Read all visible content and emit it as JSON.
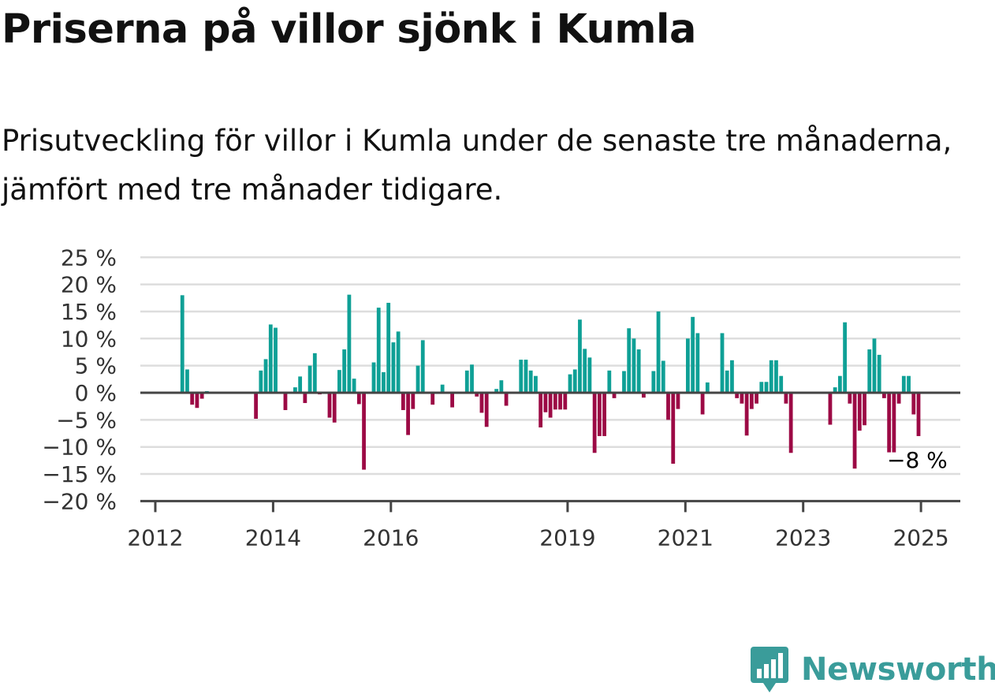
{
  "title": "Priserna på villor sjönk i Kumla",
  "subtitle": "Prisutveckling för villor i Kumla under de senaste tre månaderna, jämfört med tre månader tidigare.",
  "brand": {
    "name": "Newsworthy",
    "icon": "newsworthy-logo-icon"
  },
  "colors": {
    "positive": "#0fa096",
    "negative": "#9c0a45",
    "grid": "#dddddd",
    "axis": "#444444"
  },
  "chart_data": {
    "type": "bar",
    "title": "",
    "xlabel": "",
    "ylabel": "",
    "ylim": [
      -20,
      25
    ],
    "y_ticks": [
      -20,
      -15,
      -10,
      -5,
      0,
      5,
      10,
      15,
      20,
      25
    ],
    "y_tick_labels": [
      "−20 %",
      "−15 %",
      "−10 %",
      "−5 %",
      "0 %",
      "5 %",
      "10 %",
      "15 %",
      "20 %",
      "25 %"
    ],
    "x_ticks": [
      2012,
      2014,
      2016,
      2019,
      2021,
      2023,
      2025
    ],
    "x_tick_labels": [
      "2012",
      "2014",
      "2016",
      "2019",
      "2021",
      "2023",
      "2025"
    ],
    "grid": true,
    "end_label": "−8 %",
    "x": [
      "2012-06",
      "2012-07",
      "2012-08",
      "2012-09",
      "2012-10",
      "2012-11",
      "2013-09",
      "2013-10",
      "2013-11",
      "2013-12",
      "2014-01",
      "2014-03",
      "2014-05",
      "2014-06",
      "2014-07",
      "2014-08",
      "2014-09",
      "2014-10",
      "2014-12",
      "2015-01",
      "2015-02",
      "2015-03",
      "2015-04",
      "2015-05",
      "2015-06",
      "2015-07",
      "2015-09",
      "2015-10",
      "2015-11",
      "2015-12",
      "2016-01",
      "2016-02",
      "2016-03",
      "2016-04",
      "2016-05",
      "2016-06",
      "2016-07",
      "2016-09",
      "2016-11",
      "2017-01",
      "2017-04",
      "2017-05",
      "2017-06",
      "2017-07",
      "2017-08",
      "2017-10",
      "2017-11",
      "2017-12",
      "2018-03",
      "2018-04",
      "2018-05",
      "2018-06",
      "2018-07",
      "2018-08",
      "2018-09",
      "2018-10",
      "2018-11",
      "2018-12",
      "2019-01",
      "2019-02",
      "2019-03",
      "2019-04",
      "2019-05",
      "2019-06",
      "2019-07",
      "2019-08",
      "2019-09",
      "2019-10",
      "2019-12",
      "2020-01",
      "2020-02",
      "2020-03",
      "2020-04",
      "2020-06",
      "2020-07",
      "2020-08",
      "2020-09",
      "2020-10",
      "2020-11",
      "2021-01",
      "2021-02",
      "2021-03",
      "2021-04",
      "2021-05",
      "2021-06",
      "2021-08",
      "2021-09",
      "2021-10",
      "2021-11",
      "2021-12",
      "2022-01",
      "2022-02",
      "2022-03",
      "2022-04",
      "2022-05",
      "2022-06",
      "2022-07",
      "2022-08",
      "2022-09",
      "2022-10",
      "2023-06",
      "2023-07",
      "2023-08",
      "2023-09",
      "2023-10",
      "2023-11",
      "2023-12",
      "2024-01",
      "2024-02",
      "2024-03",
      "2024-04",
      "2024-05",
      "2024-06",
      "2024-07",
      "2024-08",
      "2024-09",
      "2024-10",
      "2024-11",
      "2024-12"
    ],
    "series": [
      {
        "values": [
          18,
          4.3,
          -2.2,
          -2.8,
          -1.1,
          0.3,
          -4.8,
          4.1,
          6.2,
          12.6,
          12,
          -3.2,
          1,
          3,
          -1.9,
          5,
          7.3,
          -0.3,
          -4.6,
          -5.5,
          4.2,
          8,
          18.1,
          2.6,
          -2.1,
          -14.2,
          5.6,
          15.7,
          3.8,
          16.6,
          9.3,
          11.3,
          -3.2,
          -7.8,
          -3,
          5,
          9.7,
          -2.2,
          1.5,
          -2.7,
          4.1,
          5.2,
          -0.7,
          -3.7,
          -6.3,
          0.7,
          2.3,
          -2.4,
          6.1,
          6.1,
          4.1,
          3.1,
          -6.4,
          -3.6,
          -4.6,
          -3.1,
          -3.1,
          -3.1,
          3.4,
          4.3,
          13.5,
          8.1,
          6.5,
          -11.1,
          -8,
          -8,
          4.1,
          -1,
          4,
          11.9,
          10,
          8,
          -0.9,
          4,
          15,
          5.9,
          -5,
          -13.1,
          -3,
          10,
          14,
          11,
          -4,
          1.9,
          -0.2,
          11,
          4.1,
          6,
          -1,
          -2,
          -7.9,
          -3,
          -2,
          2,
          2,
          6,
          6,
          3.1,
          -2,
          -11.1,
          -5.9,
          1,
          3.1,
          13,
          -2,
          -14,
          -7,
          -6,
          8,
          10,
          7,
          -1,
          -11,
          -11,
          -2,
          3.1,
          3.1,
          -4,
          -8
        ]
      }
    ]
  }
}
